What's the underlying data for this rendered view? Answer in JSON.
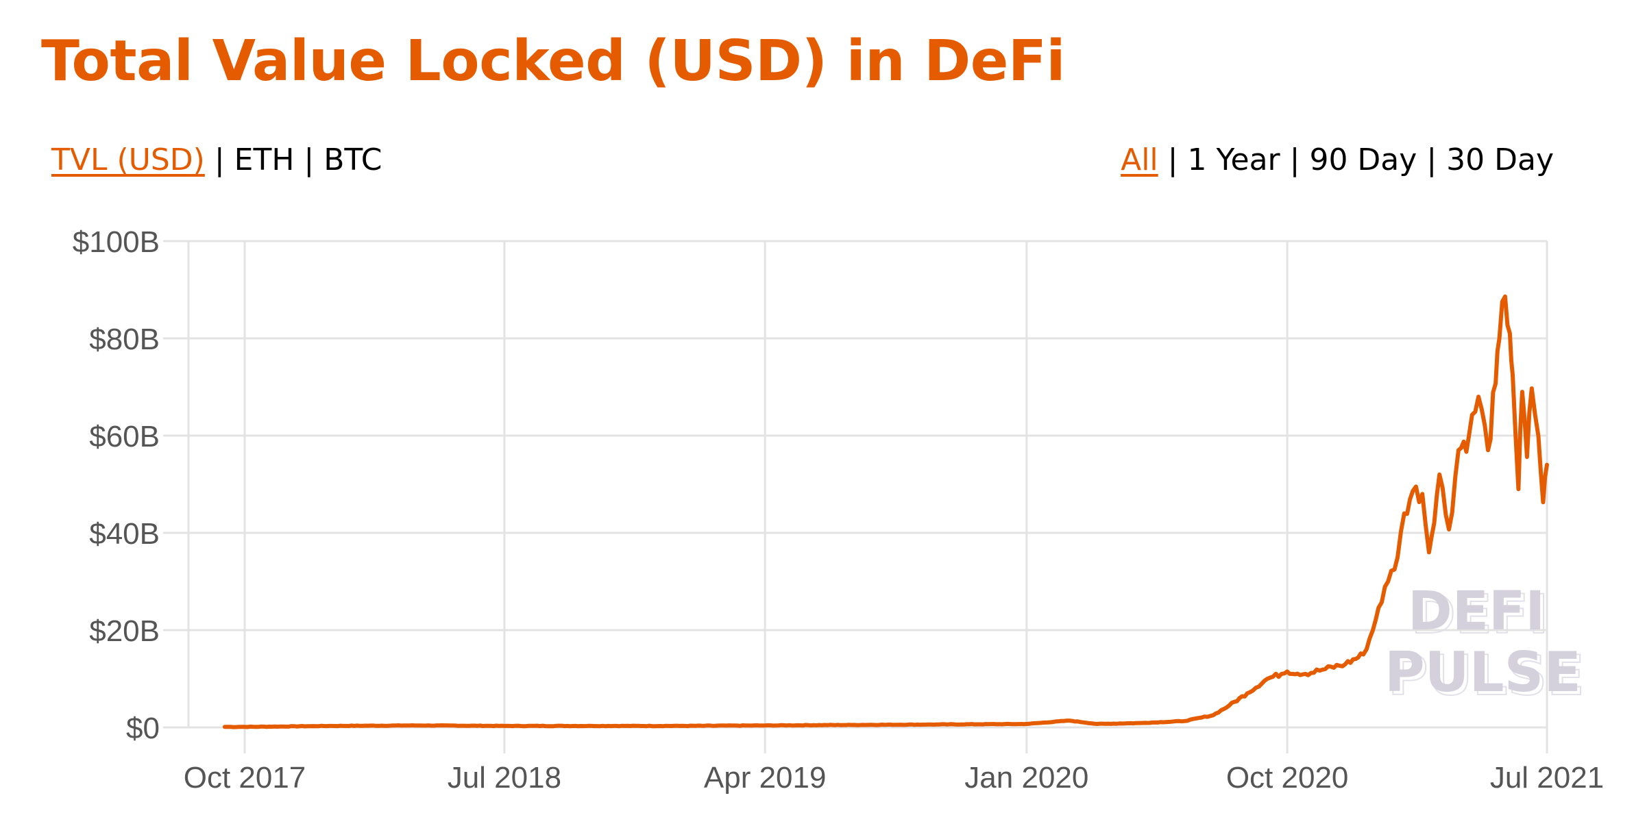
{
  "page": {
    "title": "Total Value Locked (USD) in DeFi",
    "brand_color": "#E55B00",
    "metric_toggle": [
      {
        "label": "TVL (USD)",
        "active": true
      },
      {
        "label": "ETH",
        "active": false
      },
      {
        "label": "BTC",
        "active": false
      }
    ],
    "range_toggle": [
      {
        "label": "All",
        "active": true
      },
      {
        "label": "1 Year",
        "active": false
      },
      {
        "label": "90 Day",
        "active": false
      },
      {
        "label": "30 Day",
        "active": false
      }
    ],
    "separator": "|",
    "watermark": {
      "line1": "DEFI",
      "line2": "PULSE"
    }
  },
  "chart_data": {
    "type": "line",
    "title": "Total Value Locked (USD) in DeFi",
    "xlabel": "",
    "ylabel": "",
    "ylim": [
      0,
      100
    ],
    "y_unit": "USD billions",
    "yticks": [
      0,
      20,
      40,
      60,
      80,
      100
    ],
    "ytick_labels": [
      "$0",
      "$20B",
      "$40B",
      "$60B",
      "$80B",
      "$100B"
    ],
    "xticks": [
      "Oct 2017",
      "Jul 2018",
      "Apr 2019",
      "Jan 2020",
      "Oct 2020",
      "Jul 2021"
    ],
    "grid": true,
    "legend": null,
    "line_color": "#E55B00",
    "series": [
      {
        "name": "TVL (USD)",
        "x": [
          "2017-09-10",
          "2017-10-01",
          "2018-01-01",
          "2018-04-01",
          "2018-07-01",
          "2018-10-01",
          "2019-01-01",
          "2019-04-01",
          "2019-07-01",
          "2019-10-01",
          "2020-01-01",
          "2020-02-15",
          "2020-03-15",
          "2020-05-01",
          "2020-06-15",
          "2020-07-15",
          "2020-08-01",
          "2020-08-20",
          "2020-09-10",
          "2020-09-25",
          "2020-10-01",
          "2020-10-20",
          "2020-11-10",
          "2020-12-01",
          "2020-12-20",
          "2020-12-30",
          "2021-01-05",
          "2021-01-15",
          "2021-01-25",
          "2021-02-01",
          "2021-02-10",
          "2021-02-20",
          "2021-02-27",
          "2021-03-10",
          "2021-03-20",
          "2021-03-30",
          "2021-04-10",
          "2021-04-20",
          "2021-04-30",
          "2021-05-08",
          "2021-05-12",
          "2021-05-18",
          "2021-05-23",
          "2021-05-26",
          "2021-06-01",
          "2021-06-05",
          "2021-06-10",
          "2021-06-15",
          "2021-06-22",
          "2021-06-27",
          "2021-07-01"
        ],
        "values": [
          0.1,
          0.1,
          0.3,
          0.4,
          0.3,
          0.3,
          0.3,
          0.4,
          0.5,
          0.6,
          0.7,
          1.4,
          0.7,
          0.9,
          1.3,
          2.5,
          4.5,
          7,
          10,
          11,
          11.5,
          11,
          12,
          13,
          15,
          20,
          24.6,
          30,
          35,
          44,
          48.6,
          48,
          36,
          52,
          40.7,
          57,
          60,
          68,
          57,
          70.7,
          80,
          88.6,
          81,
          72.5,
          49,
          69,
          55.6,
          69.7,
          59.9,
          46.3,
          54
        ]
      }
    ]
  }
}
